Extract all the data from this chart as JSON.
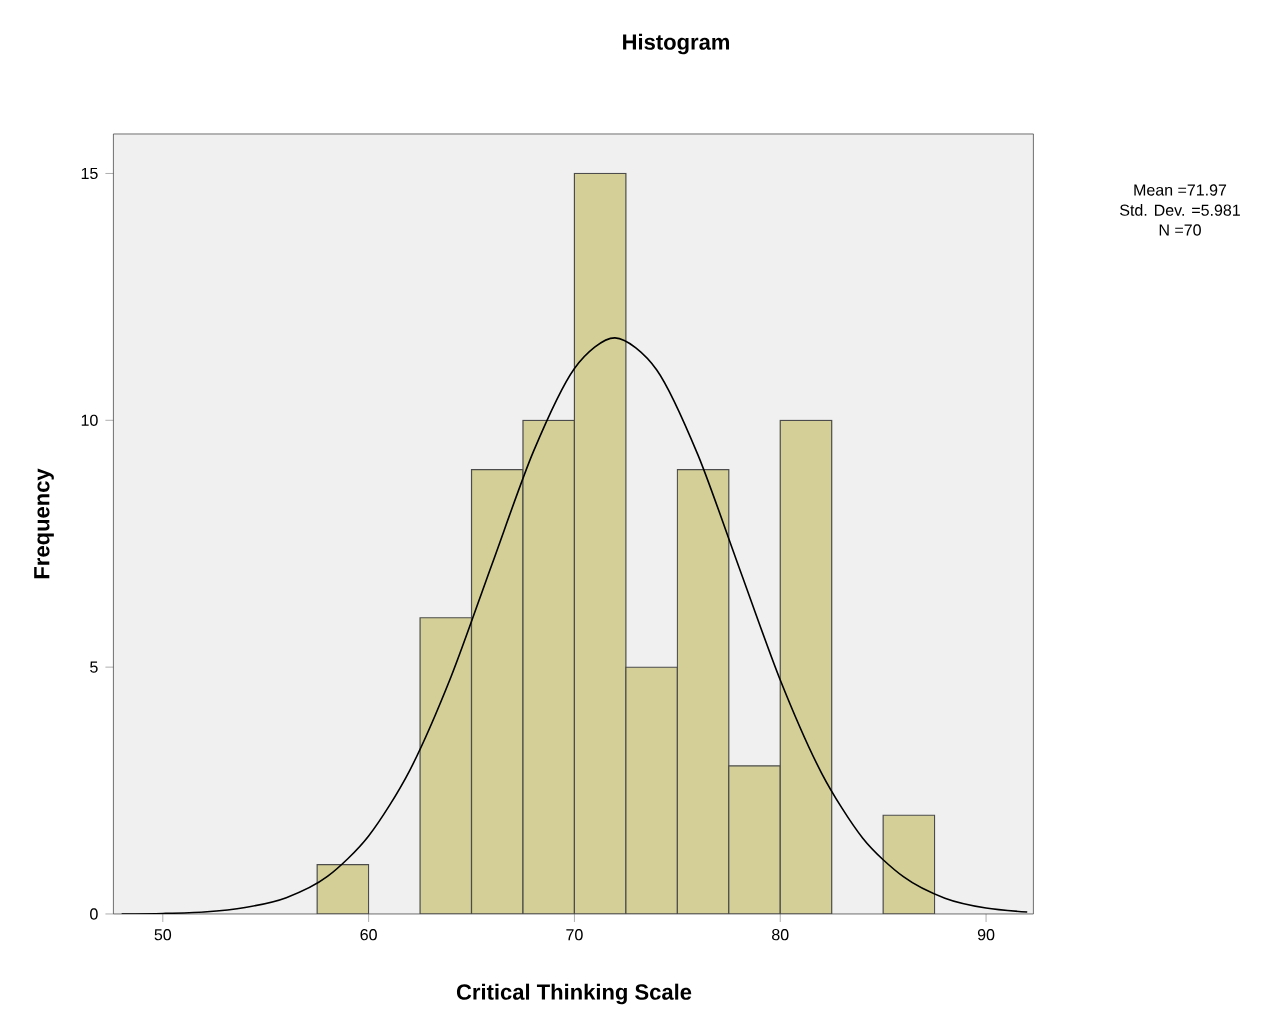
{
  "chart_data": {
    "type": "histogram",
    "title": "Histogram",
    "xlabel": "Critical Thinking Scale",
    "ylabel": "Frequency",
    "bins": [
      57.5,
      60,
      62.5,
      65,
      67.5,
      70,
      72.5,
      75,
      77.5,
      80,
      82.5,
      85,
      87.5
    ],
    "values": [
      1,
      0,
      6,
      9,
      10,
      15,
      5,
      9,
      3,
      10,
      0,
      2
    ],
    "color": "#d3cf96",
    "series": [
      {
        "type": "line",
        "color": "#000000",
        "x": [
          48,
          50,
          52,
          54,
          56,
          58,
          60,
          62,
          64,
          66,
          68,
          70,
          71.97,
          74,
          76,
          78,
          80,
          82,
          84,
          86,
          88,
          90,
          92
        ],
        "values": [
          0,
          0.01,
          0.04,
          0.13,
          0.33,
          0.76,
          1.58,
          2.91,
          4.8,
          7.09,
          9.36,
          11.05,
          11.67,
          11.02,
          9.3,
          7.02,
          4.74,
          2.86,
          1.54,
          0.75,
          0.32,
          0.12,
          0.04
        ]
      }
    ],
    "xlim": [
      47.6,
      92.3
    ],
    "ylim": [
      0,
      15.8
    ],
    "xticks": [
      50,
      60,
      70,
      80,
      90
    ],
    "yticks": [
      0,
      5,
      10,
      15
    ],
    "annotations": [
      "Mean =71.97",
      "Std. Dev. =5.981",
      "N =70"
    ]
  }
}
